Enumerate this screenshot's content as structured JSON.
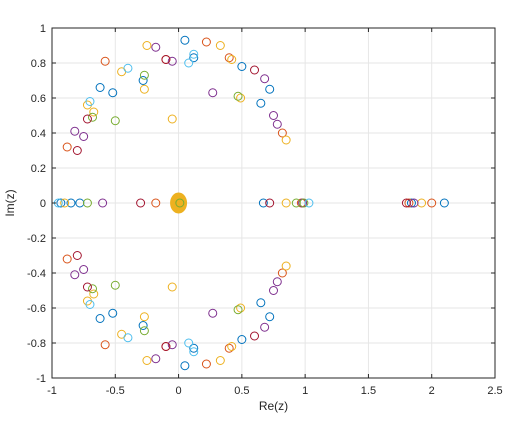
{
  "chart_data": {
    "type": "scatter",
    "title": "",
    "xlabel": "Re(z)",
    "ylabel": "Im(z)",
    "xlim": [
      -1,
      2.5
    ],
    "ylim": [
      -1,
      1
    ],
    "xticks": [
      -1,
      -0.5,
      0,
      0.5,
      1,
      1.5,
      2,
      2.5
    ],
    "xtick_labels": [
      "-1",
      "-0.5",
      "0",
      "0.5",
      "1",
      "1.5",
      "2",
      "2.5"
    ],
    "yticks": [
      -1,
      -0.8,
      -0.6,
      -0.4,
      -0.2,
      0,
      0.2,
      0.4,
      0.6,
      0.8,
      1
    ],
    "ytick_labels": [
      "-1",
      "-0.8",
      "-0.6",
      "-0.4",
      "-0.2",
      "0",
      "0.2",
      "0.4",
      "0.6",
      "0.8",
      "1"
    ],
    "grid": true,
    "legend": "none",
    "marker": "open-circle",
    "center_marker": {
      "x": 0.0,
      "y": 0.0,
      "color": "#EDB120",
      "shape": "filled-ellipse"
    },
    "series": [
      {
        "color": "#0072BD",
        "points": [
          [
            0.05,
            0.93
          ],
          [
            0.12,
            0.83
          ],
          [
            -0.52,
            0.63
          ],
          [
            -0.62,
            0.66
          ],
          [
            -0.28,
            0.7
          ],
          [
            0.5,
            0.78
          ],
          [
            0.65,
            0.57
          ],
          [
            0.72,
            0.65
          ],
          [
            -0.93,
            0.0
          ],
          [
            -0.85,
            0.0
          ],
          [
            -0.78,
            0.0
          ],
          [
            0.67,
            0.0
          ],
          [
            1.84,
            0.0
          ],
          [
            2.1,
            0.0
          ]
        ]
      },
      {
        "color": "#D95319",
        "points": [
          [
            0.22,
            0.92
          ],
          [
            -0.58,
            0.81
          ],
          [
            -0.1,
            0.82
          ],
          [
            0.4,
            0.83
          ],
          [
            0.82,
            0.4
          ],
          [
            -0.88,
            0.32
          ],
          [
            -0.18,
            0.0
          ],
          [
            0.97,
            0.0
          ],
          [
            1.82,
            0.0
          ],
          [
            2.0,
            0.0
          ]
        ]
      },
      {
        "color": "#EDB120",
        "points": [
          [
            -0.25,
            0.9
          ],
          [
            0.33,
            0.9
          ],
          [
            -0.45,
            0.75
          ],
          [
            0.42,
            0.82
          ],
          [
            -0.72,
            0.56
          ],
          [
            -0.67,
            0.52
          ],
          [
            0.49,
            0.6
          ],
          [
            -0.27,
            0.65
          ],
          [
            -0.05,
            0.48
          ],
          [
            0.85,
            0.36
          ],
          [
            -0.9,
            0.0
          ],
          [
            0.85,
            0.0
          ],
          [
            1.92,
            0.0
          ]
        ]
      },
      {
        "color": "#7E2F8E",
        "points": [
          [
            -0.18,
            0.89
          ],
          [
            -0.05,
            0.81
          ],
          [
            0.27,
            0.63
          ],
          [
            0.75,
            0.5
          ],
          [
            0.78,
            0.45
          ],
          [
            0.68,
            0.71
          ],
          [
            -0.75,
            0.38
          ],
          [
            -0.82,
            0.41
          ],
          [
            -0.6,
            0.0
          ],
          [
            0.98,
            0.0
          ],
          [
            1.86,
            0.0
          ]
        ]
      },
      {
        "color": "#77AC30",
        "points": [
          [
            -0.27,
            0.73
          ],
          [
            -0.5,
            0.47
          ],
          [
            0.47,
            0.61
          ],
          [
            -0.68,
            0.49
          ],
          [
            0.99,
            0.0
          ],
          [
            -0.72,
            0.0
          ],
          [
            0.01,
            0.0
          ],
          [
            0.93,
            0.0
          ]
        ]
      },
      {
        "color": "#4DBEEE",
        "points": [
          [
            0.12,
            0.85
          ],
          [
            -0.7,
            0.58
          ],
          [
            0.08,
            0.8
          ],
          [
            -0.4,
            0.77
          ],
          [
            -0.95,
            0.0
          ],
          [
            1.03,
            0.0
          ]
        ]
      },
      {
        "color": "#A2142F",
        "points": [
          [
            -0.1,
            0.82
          ],
          [
            0.6,
            0.76
          ],
          [
            -0.8,
            0.3
          ],
          [
            -0.72,
            0.48
          ],
          [
            -0.3,
            0.0
          ],
          [
            0.72,
            0.0
          ],
          [
            1.8,
            0.0
          ]
        ]
      }
    ]
  }
}
